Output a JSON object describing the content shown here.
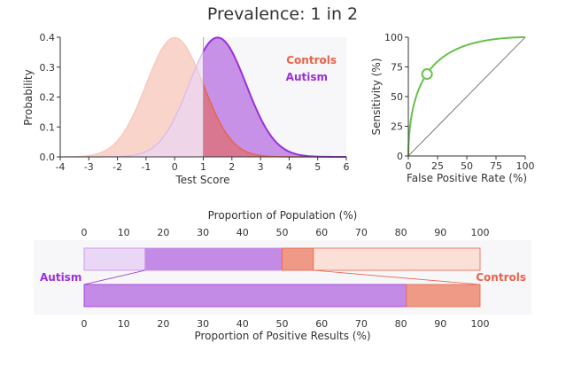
{
  "title": "Prevalence: 1 in 2",
  "colors": {
    "controls": "#e8634a",
    "controls_fill": "#f7c6b8",
    "controls_light": "#fbe0d7",
    "autism": "#9b30d9",
    "autism_fill": "#c48be6",
    "autism_light": "#ead7f5",
    "roc_line": "#66c24a",
    "panel_bg": "#f7f6f8",
    "axis": "#333333"
  },
  "chart_data": [
    {
      "type": "area",
      "name": "score-distributions",
      "xlabel": "Test Score",
      "ylabel": "Probability",
      "xlim": [
        -4,
        6
      ],
      "ylim": [
        0,
        0.4
      ],
      "x_ticks": [
        "-4",
        "-3",
        "-2",
        "-1",
        "0",
        "1",
        "2",
        "3",
        "4",
        "5",
        "6"
      ],
      "y_ticks": [
        "0.0",
        "0.1",
        "0.2",
        "0.3",
        "0.4"
      ],
      "threshold": 1,
      "legend": [
        "Controls",
        "Autism"
      ],
      "legend_position": "top-right",
      "series": [
        {
          "name": "Controls",
          "distribution": "normal",
          "mean": 0,
          "sd": 1
        },
        {
          "name": "Autism",
          "distribution": "normal",
          "mean": 1.5,
          "sd": 1
        }
      ]
    },
    {
      "type": "line",
      "name": "roc-curve",
      "xlabel": "False Positive Rate (%)",
      "ylabel": "Sensitivity (%)",
      "xlim": [
        0,
        100
      ],
      "ylim": [
        0,
        100
      ],
      "x_ticks": [
        "0",
        "25",
        "50",
        "75",
        "100"
      ],
      "y_ticks": [
        "0",
        "25",
        "50",
        "75",
        "100"
      ],
      "curve": {
        "separation_d": 1.5
      },
      "operating_point": {
        "x": 16,
        "y": 69
      },
      "diagonal": true
    },
    {
      "type": "bar",
      "name": "proportion-bars",
      "top_axis_label": "Proportion of Population (%)",
      "bottom_axis_label": "Proportion of Positive Results (%)",
      "ticks": [
        "0",
        "10",
        "20",
        "30",
        "40",
        "50",
        "60",
        "70",
        "80",
        "90",
        "100"
      ],
      "left_label": "Autism",
      "right_label": "Controls",
      "population": {
        "autism_negative": 15.4,
        "autism_positive": 34.6,
        "controls_positive": 7.9,
        "controls_negative": 42.1
      },
      "positive_results": {
        "autism": 81.4,
        "controls": 18.6
      }
    }
  ]
}
